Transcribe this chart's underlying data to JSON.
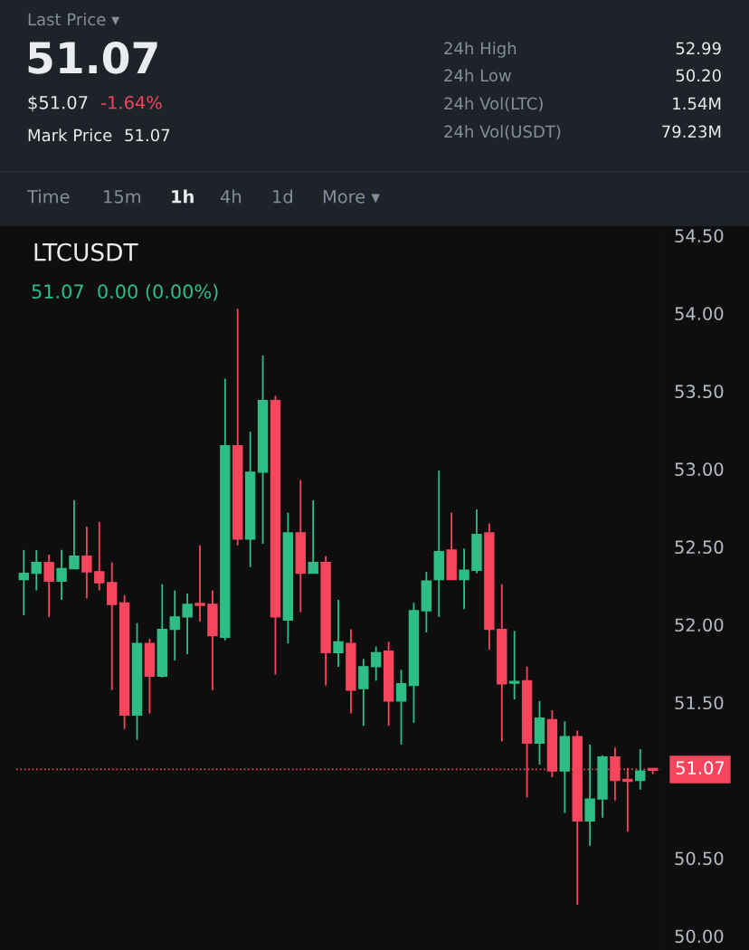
{
  "chart_data": {
    "type": "candlestick",
    "title": "LTCUSDT",
    "subtitle": "51.07  0.00 (0.00%)",
    "categories": [
      null,
      null,
      null,
      null,
      null,
      null,
      null,
      null,
      null,
      null,
      null,
      null,
      null,
      null,
      null,
      null,
      null,
      null,
      null,
      null,
      null,
      null,
      null,
      null,
      null,
      null,
      null,
      null,
      null,
      null,
      null,
      null,
      null,
      null,
      null,
      null,
      null,
      null,
      null,
      null,
      null,
      null,
      null,
      null,
      null,
      null,
      null,
      null,
      null,
      null,
      null
    ],
    "ohlc": [
      [
        52.29,
        52.48,
        52.06,
        52.33
      ],
      [
        52.33,
        52.48,
        52.22,
        52.4
      ],
      [
        52.4,
        52.45,
        52.05,
        52.28
      ],
      [
        52.28,
        52.48,
        52.16,
        52.36
      ],
      [
        52.36,
        52.8,
        52.36,
        52.44
      ],
      [
        52.44,
        52.63,
        52.17,
        52.34
      ],
      [
        52.34,
        52.66,
        52.22,
        52.27
      ],
      [
        52.27,
        52.4,
        51.58,
        52.13
      ],
      [
        52.14,
        52.19,
        51.33,
        51.42
      ],
      [
        51.42,
        52.01,
        51.26,
        51.88
      ],
      [
        51.88,
        51.91,
        51.43,
        51.67
      ],
      [
        51.67,
        52.26,
        51.66,
        51.97
      ],
      [
        51.97,
        52.22,
        51.77,
        52.05
      ],
      [
        52.05,
        52.2,
        51.81,
        52.13
      ],
      [
        52.13,
        52.51,
        52.02,
        52.13
      ],
      [
        52.13,
        52.22,
        51.58,
        51.93
      ],
      [
        51.92,
        53.58,
        51.9,
        53.15
      ],
      [
        53.15,
        54.03,
        52.51,
        52.55
      ],
      [
        52.55,
        53.24,
        52.37,
        52.98
      ],
      [
        52.98,
        53.73,
        52.52,
        53.44
      ],
      [
        53.44,
        53.47,
        51.68,
        52.05
      ],
      [
        52.03,
        52.72,
        51.88,
        52.59
      ],
      [
        52.59,
        52.93,
        52.08,
        52.33
      ],
      [
        52.33,
        52.8,
        52.33,
        52.4
      ],
      [
        52.4,
        52.44,
        51.61,
        51.82
      ],
      [
        51.82,
        52.16,
        51.73,
        51.89
      ],
      [
        51.88,
        51.97,
        51.43,
        51.58
      ],
      [
        51.59,
        51.78,
        51.35,
        51.73
      ],
      [
        51.73,
        51.86,
        51.64,
        51.82
      ],
      [
        51.83,
        51.89,
        51.35,
        51.51
      ],
      [
        51.51,
        51.71,
        51.23,
        51.62
      ],
      [
        51.61,
        52.14,
        51.37,
        52.09
      ],
      [
        52.09,
        52.34,
        51.95,
        52.28
      ],
      [
        52.29,
        52.99,
        52.05,
        52.47
      ],
      [
        52.48,
        52.72,
        52.29,
        52.29
      ],
      [
        52.29,
        52.49,
        52.1,
        52.35
      ],
      [
        52.35,
        52.74,
        52.33,
        52.58
      ],
      [
        52.59,
        52.65,
        51.84,
        51.97
      ],
      [
        51.97,
        52.26,
        51.25,
        51.62
      ],
      [
        51.63,
        51.96,
        51.52,
        51.63
      ],
      [
        51.64,
        51.73,
        50.89,
        51.24
      ],
      [
        51.24,
        51.51,
        51.1,
        51.4
      ],
      [
        51.39,
        51.45,
        51.02,
        51.06
      ],
      [
        51.06,
        51.38,
        50.79,
        51.28
      ],
      [
        51.28,
        51.32,
        50.2,
        50.74
      ],
      [
        50.74,
        51.23,
        50.58,
        50.88
      ],
      [
        50.88,
        51.16,
        50.76,
        51.15
      ],
      [
        51.15,
        51.21,
        50.87,
        51.0
      ],
      [
        51.0,
        51.08,
        50.67,
        51.0
      ],
      [
        51.0,
        51.2,
        50.94,
        51.06
      ],
      [
        51.07,
        51.08,
        51.04,
        51.07
      ]
    ],
    "colors": [
      "#2ebd85",
      "#2ebd85",
      "#f6465d",
      "#2ebd85",
      "#2ebd85",
      "#f6465d",
      "#f6465d",
      "#f6465d",
      "#f6465d",
      "#2ebd85",
      "#f6465d",
      "#2ebd85",
      "#2ebd85",
      "#2ebd85",
      "#f6465d",
      "#f6465d",
      "#2ebd85",
      "#f6465d",
      "#2ebd85",
      "#2ebd85",
      "#f6465d",
      "#2ebd85",
      "#f6465d",
      "#2ebd85",
      "#f6465d",
      "#2ebd85",
      "#f6465d",
      "#2ebd85",
      "#2ebd85",
      "#f6465d",
      "#2ebd85",
      "#2ebd85",
      "#2ebd85",
      "#2ebd85",
      "#f6465d",
      "#2ebd85",
      "#2ebd85",
      "#f6465d",
      "#f6465d",
      "#2ebd85",
      "#f6465d",
      "#2ebd85",
      "#f6465d",
      "#2ebd85",
      "#f6465d",
      "#2ebd85",
      "#2ebd85",
      "#f6465d",
      "#f6465d",
      "#2ebd85",
      "#f6465d"
    ],
    "ylim": [
      49.91,
      54.56
    ],
    "yticks": [
      {
        "value": 50,
        "label": "50.00"
      },
      {
        "value": 50.5,
        "label": "50.50"
      },
      {
        "value": 51.5,
        "label": "51.50"
      },
      {
        "value": 52,
        "label": "52.00"
      },
      {
        "value": 52.5,
        "label": "52.50"
      },
      {
        "value": 53,
        "label": "53.00"
      },
      {
        "value": 53.5,
        "label": "53.50"
      },
      {
        "value": 54,
        "label": "54.00"
      },
      {
        "value": 54.5,
        "label": "54.50"
      }
    ],
    "tick_labels": "y",
    "grid": false,
    "ref_lines": [
      {
        "axis": "y",
        "value": 51.07,
        "label": "51.07",
        "color": "#f6465d",
        "line_style": "dotted"
      }
    ],
    "annotations": [
      "Last Price ▾",
      "51.07",
      "$51.07",
      "-1.64%",
      "Mark Price",
      "51.07",
      "24h High",
      "52.99",
      "24h Low",
      "50.20",
      "24h Vol(LTC)",
      "1.54M",
      "24h Vol(USDT)",
      "79.23M",
      "Time",
      "15m",
      "1h",
      "4h",
      "1d",
      "More ▾"
    ]
  }
}
